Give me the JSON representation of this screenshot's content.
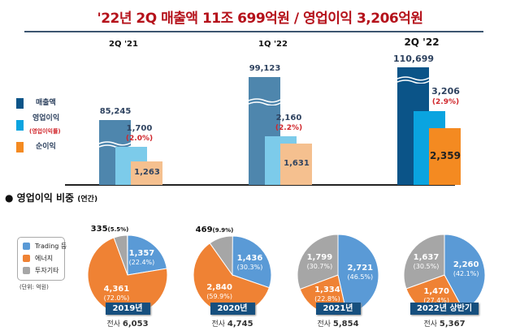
{
  "title": "'22년 2Q 매출액 11조 699억원 / 영업이익 3,206억원",
  "colors": {
    "title": "#b5121b",
    "revenue": [
      "#4e86ad",
      "#4e86ad",
      "#0b5488"
    ],
    "op_profit": [
      "#7ccbea",
      "#7ccbea",
      "#0aa4e0"
    ],
    "net_income": [
      "#f5c08f",
      "#f5c08f",
      "#f48a21"
    ],
    "trading": "#5a9ad6",
    "energy": "#ef8234",
    "other": "#a6a6a6",
    "pct_label": "#d0262b"
  },
  "chart_data": [
    {
      "type": "bar",
      "axis_break": true,
      "categories": [
        "2Q '21",
        "1Q '22",
        "2Q '22"
      ],
      "series": [
        {
          "name": "매출액",
          "values": [
            85245,
            99123,
            110699
          ]
        },
        {
          "name": "영업이익",
          "values": [
            1700,
            2160,
            3206
          ],
          "margin_labels": [
            "(2.0%)",
            "(2.2%)",
            "(2.9%)"
          ]
        },
        {
          "name": "순이익",
          "values": [
            1263,
            1631,
            2359
          ]
        }
      ],
      "value_labels": {
        "revenue": [
          "85,245",
          "99,123",
          "110,699"
        ],
        "op": [
          "1,700",
          "2,160",
          "3,206"
        ],
        "net": [
          "1,263",
          "1,631",
          "2,359"
        ]
      },
      "legend": [
        "매출액",
        "영업이익",
        "순이익"
      ],
      "legend_sub": "(영업이익률)",
      "legend_placement": "left"
    },
    {
      "type": "pie",
      "title": "영업이익 비중",
      "title_suffix": "(연간)",
      "unit": "(단위: 억원)",
      "legend": [
        "Trading 등",
        "에너지",
        "투자기타"
      ],
      "legend_placement": "left",
      "pies": [
        {
          "label": "2019년",
          "total_prefix": "전사",
          "total": "6,053",
          "slices": [
            {
              "v": "1,357",
              "p": 22.4
            },
            {
              "v": "4,361",
              "p": 72.0
            },
            {
              "v": "335",
              "p": 5.5
            }
          ]
        },
        {
          "label": "2020년",
          "total_prefix": "전사",
          "total": "4,745",
          "slices": [
            {
              "v": "1,436",
              "p": 30.3
            },
            {
              "v": "2,840",
              "p": 59.9
            },
            {
              "v": "469",
              "p": 9.9
            }
          ]
        },
        {
          "label": "2021년",
          "total_prefix": "전사",
          "total": "5,854",
          "slices": [
            {
              "v": "2,721",
              "p": 46.5
            },
            {
              "v": "1,334",
              "p": 22.8
            },
            {
              "v": "1,799",
              "p": 30.7
            }
          ]
        },
        {
          "label": "2022년 상반기",
          "total_prefix": "전사",
          "total": "5,367",
          "slices": [
            {
              "v": "2,260",
              "p": 42.1
            },
            {
              "v": "1,470",
              "p": 27.4
            },
            {
              "v": "1,637",
              "p": 30.5
            }
          ]
        }
      ]
    }
  ]
}
